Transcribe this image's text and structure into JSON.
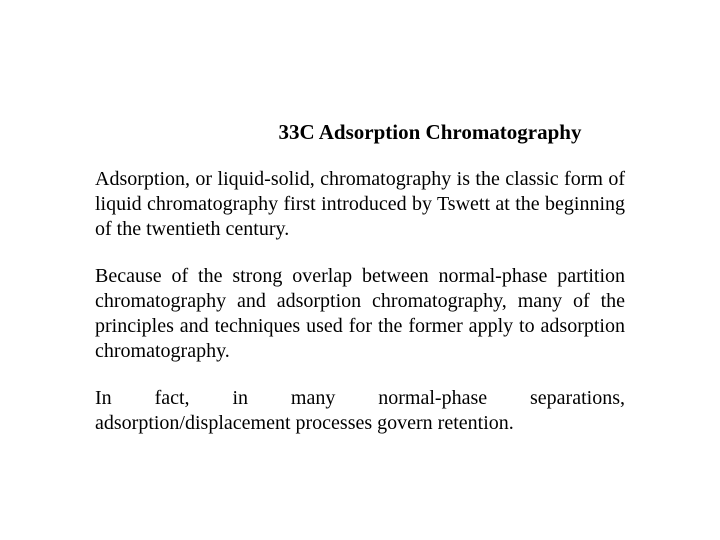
{
  "heading": "33C Adsorption Chromatography",
  "paragraphs": {
    "p1": "Adsorption, or liquid-solid, chromatography is the classic form of liquid chromatography first introduced by Tswett at the beginning of the twentieth century.",
    "p2": "Because of the strong overlap between normal-phase partition chromatography and adsorption chromatography, many of the principles and techniques used for the former apply to adsorption chromatography.",
    "p3": "In fact, in many normal-phase separations, adsorption/displacement processes govern retention."
  },
  "colors": {
    "background": "#ffffff",
    "text": "#000000"
  },
  "typography": {
    "font_family": "Times New Roman",
    "heading_fontsize": 21,
    "heading_fontweight": "bold",
    "body_fontsize": 20,
    "body_alignment": "justify"
  }
}
